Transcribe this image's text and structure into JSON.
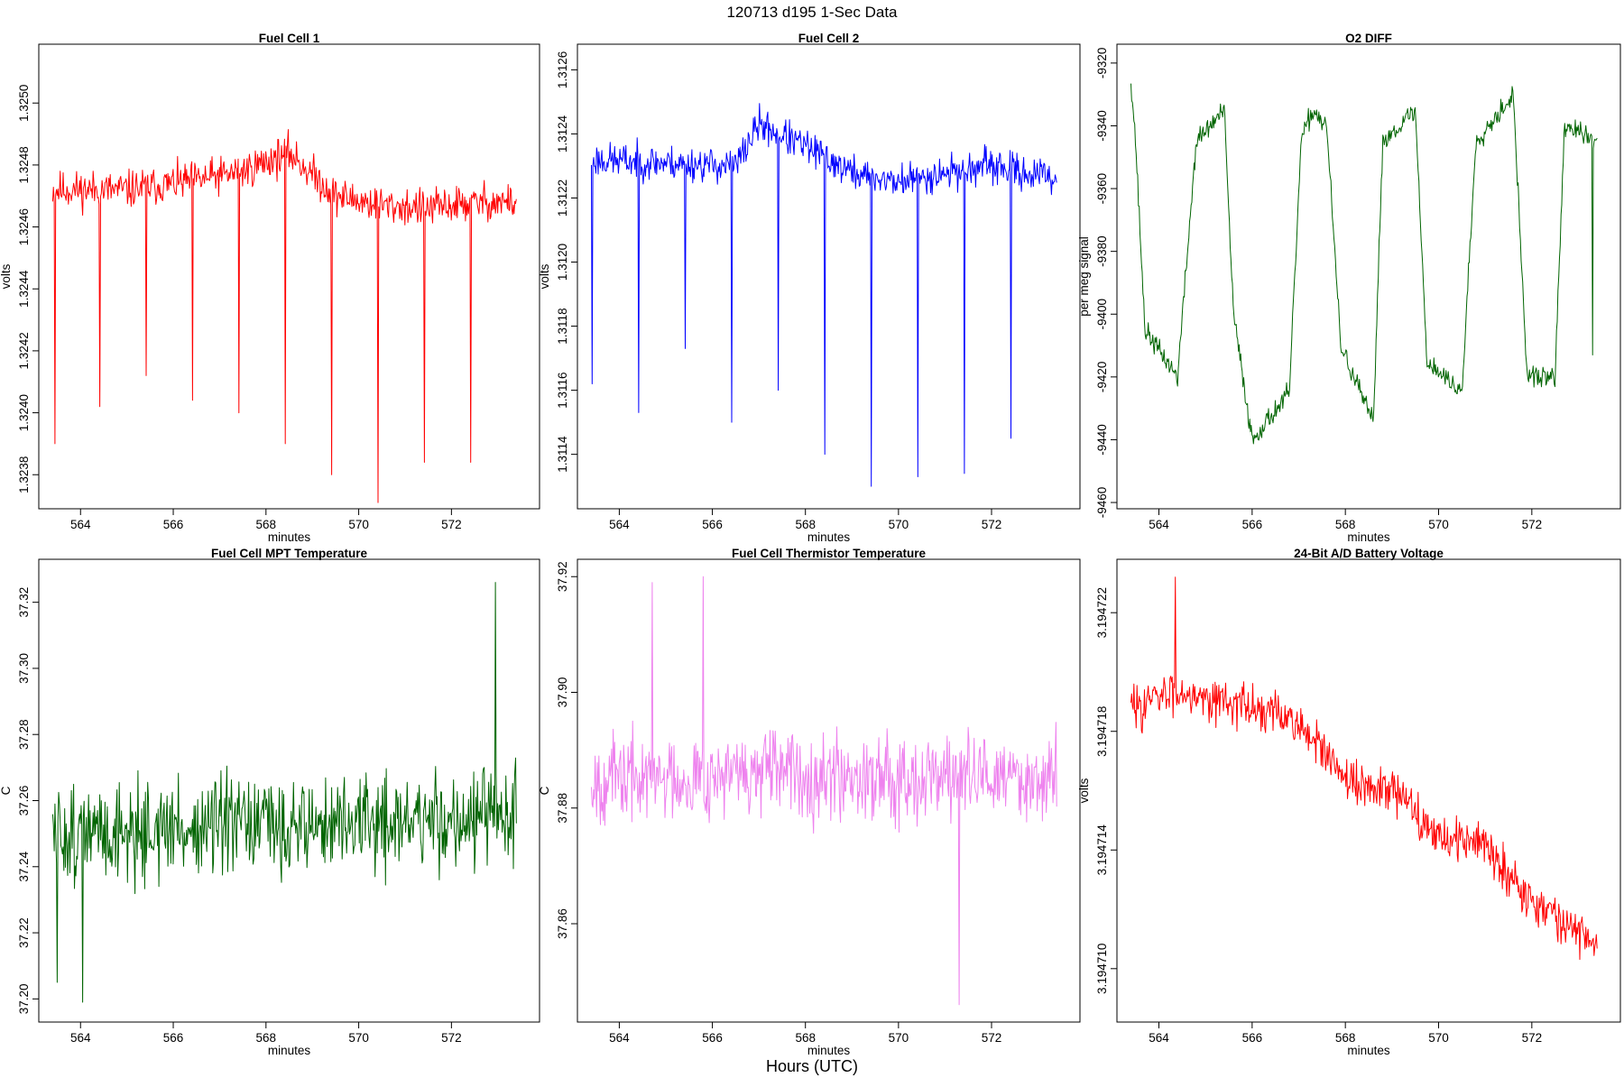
{
  "figure": {
    "title": "120713   d195   1-Sec Data",
    "bottom_label": "Hours (UTC)",
    "x_range": [
      563.4,
      573.4
    ]
  },
  "chart_data": [
    {
      "id": "fc1",
      "type": "line",
      "title": "Fuel Cell 1",
      "xlabel": "minutes",
      "ylabel": "volts",
      "color": "#ff0000",
      "xlim": [
        563.1,
        573.9
      ],
      "ylim": [
        1.32369,
        1.32519
      ],
      "xticks": [
        564,
        566,
        568,
        570,
        572
      ],
      "xtick_labels": [
        "564",
        "566",
        "568",
        "570",
        "572"
      ],
      "yticks": [
        1.3238,
        1.324,
        1.3242,
        1.3244,
        1.3246,
        1.3248,
        1.325
      ],
      "ytick_labels": [
        "1.3238",
        "1.3240",
        "1.3242",
        "1.3244",
        "1.3246",
        "1.3248",
        "1.3250"
      ],
      "profile_x": [
        563.4,
        565,
        566.5,
        567.5,
        568.5,
        569.5,
        570.5,
        571.5,
        572.5,
        573.4
      ],
      "profile_y": [
        1.32472,
        1.32472,
        1.32475,
        1.32478,
        1.32484,
        1.3247,
        1.32467,
        1.32466,
        1.32468,
        1.32468
      ],
      "noise": 9e-05,
      "dips": [
        [
          563.45,
          1.3239
        ],
        [
          564.42,
          1.32402
        ],
        [
          565.42,
          1.32412
        ],
        [
          566.42,
          1.32404
        ],
        [
          567.42,
          1.324
        ],
        [
          568.42,
          1.3239
        ],
        [
          569.42,
          1.3238
        ],
        [
          570.42,
          1.32371
        ],
        [
          571.42,
          1.32384
        ],
        [
          572.42,
          1.32384
        ]
      ],
      "seed": 11
    },
    {
      "id": "fc2",
      "type": "line",
      "title": "Fuel Cell 2",
      "xlabel": "minutes",
      "ylabel": "volts",
      "color": "#0000ff",
      "xlim": [
        563.1,
        573.9
      ],
      "ylim": [
        1.31123,
        1.31268
      ],
      "xticks": [
        564,
        566,
        568,
        570,
        572
      ],
      "xtick_labels": [
        "564",
        "566",
        "568",
        "570",
        "572"
      ],
      "yticks": [
        1.3114,
        1.3116,
        1.3118,
        1.312,
        1.3122,
        1.3124,
        1.3126
      ],
      "ytick_labels": [
        "1.3114",
        "1.3116",
        "1.3118",
        "1.3120",
        "1.3122",
        "1.3124",
        "1.3126"
      ],
      "profile_x": [
        563.4,
        565,
        566.5,
        567,
        568,
        569,
        570,
        571,
        572,
        573.4
      ],
      "profile_y": [
        1.31232,
        1.31231,
        1.3123,
        1.31243,
        1.31236,
        1.31228,
        1.31225,
        1.31228,
        1.3123,
        1.31226
      ],
      "noise": 8e-05,
      "dips": [
        [
          563.42,
          1.31162
        ],
        [
          564.42,
          1.31153
        ],
        [
          565.42,
          1.31173
        ],
        [
          566.42,
          1.3115
        ],
        [
          567.42,
          1.3116
        ],
        [
          568.42,
          1.3114
        ],
        [
          569.42,
          1.3113
        ],
        [
          570.42,
          1.31133
        ],
        [
          571.42,
          1.31134
        ],
        [
          572.42,
          1.31145
        ]
      ],
      "seed": 23
    },
    {
      "id": "o2",
      "type": "line",
      "title": "O2 DIFF",
      "xlabel": "minutes",
      "ylabel": "per meg signal",
      "color": "#006400",
      "xlim": [
        563.1,
        573.9
      ],
      "ylim": [
        -9462,
        -9314
      ],
      "xticks": [
        564,
        566,
        568,
        570,
        572
      ],
      "xtick_labels": [
        "564",
        "566",
        "568",
        "570",
        "572"
      ],
      "yticks": [
        -9460,
        -9440,
        -9420,
        -9400,
        -9380,
        -9360,
        -9340,
        -9320
      ],
      "ytick_labels": [
        "-9460",
        "-9440",
        "-9420",
        "-9400",
        "-9380",
        "-9360",
        "-9340",
        "-9320"
      ],
      "profile_x": [
        563.4,
        563.5,
        563.7,
        564.4,
        564.8,
        565.4,
        565.6,
        566.0,
        566.8,
        567.05,
        567.3,
        567.6,
        567.9,
        568.6,
        568.8,
        569.5,
        569.75,
        570.5,
        570.8,
        571.6,
        571.9,
        572.5,
        572.7,
        573.4
      ],
      "profile_y": [
        -9325,
        -9345,
        -9405,
        -9420,
        -9345,
        -9335,
        -9400,
        -9440,
        -9425,
        -9345,
        -9335,
        -9340,
        -9410,
        -9435,
        -9345,
        -9335,
        -9415,
        -9425,
        -9345,
        -9330,
        -9420,
        -9420,
        -9340,
        -9345
      ],
      "noise": 5,
      "dips": [
        [
          573.3,
          -9413
        ]
      ],
      "seed": 37
    },
    {
      "id": "mpt",
      "type": "line",
      "title": "Fuel Cell MPT Temperature",
      "xlabel": "minutes",
      "ylabel": "C",
      "color": "#006400",
      "xlim": [
        563.1,
        573.9
      ],
      "ylim": [
        37.193,
        37.333
      ],
      "xticks": [
        564,
        566,
        568,
        570,
        572
      ],
      "xtick_labels": [
        "564",
        "566",
        "568",
        "570",
        "572"
      ],
      "yticks": [
        37.2,
        37.22,
        37.24,
        37.26,
        37.28,
        37.3,
        37.32
      ],
      "ytick_labels": [
        "37.20",
        "37.22",
        "37.24",
        "37.26",
        "37.28",
        "37.30",
        "37.32"
      ],
      "profile_x": [
        563.4,
        568,
        573.4
      ],
      "profile_y": [
        37.25,
        37.252,
        37.255
      ],
      "noise": 0.022,
      "dips": [
        [
          572.95,
          37.326
        ],
        [
          563.5,
          37.205
        ],
        [
          564.05,
          37.199
        ]
      ],
      "seed": 51
    },
    {
      "id": "therm",
      "type": "line",
      "title": "Fuel Cell Thermistor Temperature",
      "xlabel": "minutes",
      "ylabel": "C",
      "color": "#ee82ee",
      "xlim": [
        563.1,
        573.9
      ],
      "ylim": [
        37.843,
        37.923
      ],
      "xticks": [
        564,
        566,
        568,
        570,
        572
      ],
      "xtick_labels": [
        "564",
        "566",
        "568",
        "570",
        "572"
      ],
      "yticks": [
        37.86,
        37.88,
        37.9,
        37.92
      ],
      "ytick_labels": [
        "37.86",
        "37.88",
        "37.90",
        "37.92"
      ],
      "profile_x": [
        563.4,
        568,
        573.4
      ],
      "profile_y": [
        37.885,
        37.886,
        37.885
      ],
      "noise": 0.011,
      "dips": [
        [
          571.3,
          37.846
        ],
        [
          565.8,
          37.92
        ],
        [
          564.7,
          37.919
        ]
      ],
      "seed": 67
    },
    {
      "id": "batt",
      "type": "line",
      "title": "24-Bit A/D Battery Voltage",
      "xlabel": "minutes",
      "ylabel": "volts",
      "color": "#ff0000",
      "xlim": [
        563.1,
        573.9
      ],
      "ylim": [
        3.1947082,
        3.1947238
      ],
      "xticks": [
        564,
        566,
        568,
        570,
        572
      ],
      "xtick_labels": [
        "564",
        "566",
        "568",
        "570",
        "572"
      ],
      "yticks": [
        3.19471,
        3.194714,
        3.194718,
        3.194722
      ],
      "ytick_labels": [
        "3.194710",
        "3.194714",
        "3.194718",
        "3.194722"
      ],
      "profile_x": [
        563.4,
        564.5,
        566,
        567,
        568,
        569,
        570,
        571,
        572,
        573.4
      ],
      "profile_y": [
        3.1947188,
        3.1947194,
        3.1947188,
        3.1947183,
        3.1947163,
        3.194716,
        3.1947145,
        3.1947142,
        3.1947123,
        3.1947108
      ],
      "noise": 1.1e-06,
      "dips": [
        [
          564.35,
          3.1947232
        ]
      ],
      "seed": 83
    }
  ]
}
